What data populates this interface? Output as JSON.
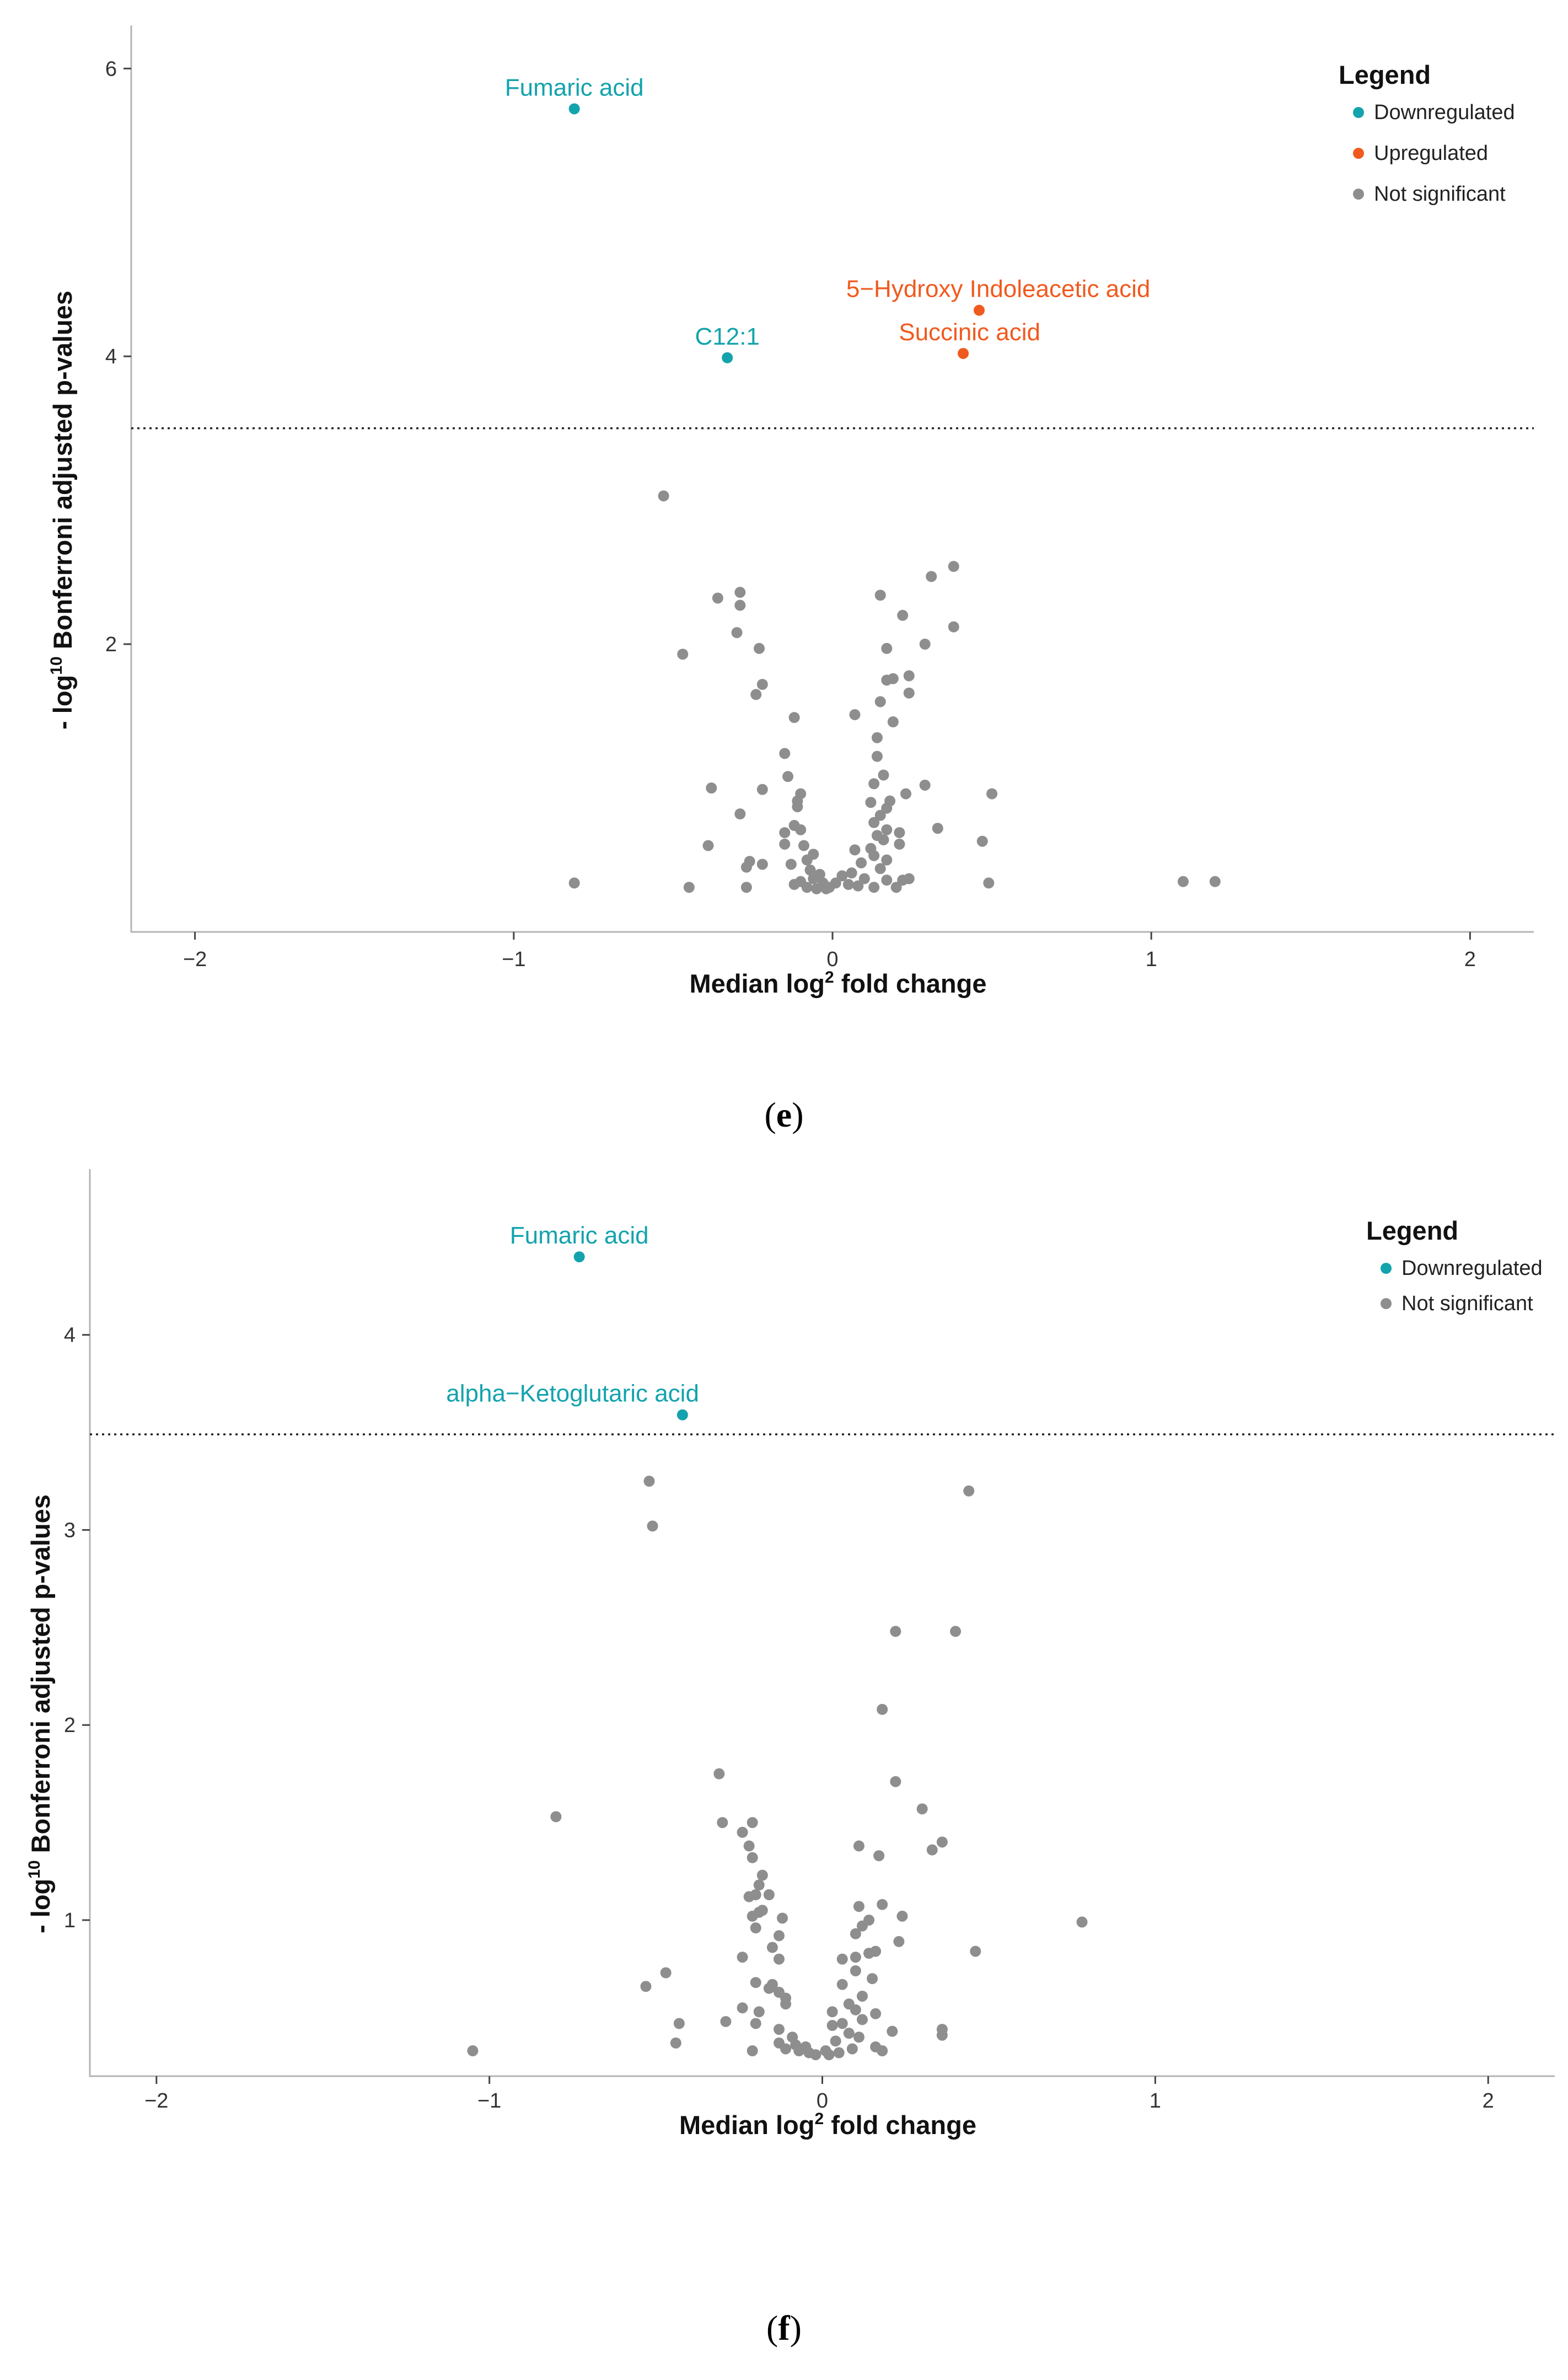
{
  "colors": {
    "downregulated": "#13a3ad",
    "upregulated": "#f05a1e",
    "not_significant": "#8e8e8e"
  },
  "chart_data": [
    {
      "id": "e",
      "type": "scatter",
      "caption": "e",
      "xlabel_main": "Median log",
      "xlabel_sup": "2",
      "xlabel_tail": " fold change",
      "ylabel_lead": "- log",
      "ylabel_sup": "10",
      "ylabel_main": " Bonferroni adjusted p-values",
      "xlim": [
        -2.2,
        2.2
      ],
      "ylim": [
        0,
        6.3
      ],
      "xticks": [
        -2,
        -1,
        0,
        1,
        2
      ],
      "xtick_labels": [
        "−2",
        "−1",
        "0",
        "1",
        "2"
      ],
      "yticks": [
        2,
        4,
        6
      ],
      "ytick_labels": [
        "2",
        "4",
        "6"
      ],
      "threshold": 3.5,
      "legend": {
        "title": "Legend",
        "entries": [
          {
            "label": "Downregulated",
            "group": "down"
          },
          {
            "label": "Upregulated",
            "group": "up"
          },
          {
            "label": "Not significant",
            "group": "ns"
          }
        ]
      },
      "labeled_points": [
        {
          "name": "Fumaric acid",
          "x": -0.81,
          "y": 5.72,
          "group": "down",
          "dx": 0
        },
        {
          "name": "C12:1",
          "x": -0.33,
          "y": 3.99,
          "group": "down",
          "dx": 0
        },
        {
          "name": "5−Hydroxy Indoleacetic acid",
          "x": 0.46,
          "y": 4.32,
          "group": "up",
          "dx": 0.06
        },
        {
          "name": "Succinic acid",
          "x": 0.41,
          "y": 4.02,
          "group": "up",
          "dx": 0.02
        }
      ],
      "points": [
        [
          -0.53,
          3.03
        ],
        [
          -0.29,
          2.36
        ],
        [
          -0.36,
          2.32
        ],
        [
          -0.29,
          2.27
        ],
        [
          -0.3,
          2.08
        ],
        [
          -0.23,
          1.97
        ],
        [
          -0.47,
          1.93
        ],
        [
          -0.22,
          1.72
        ],
        [
          -0.24,
          1.65
        ],
        [
          -0.12,
          1.49
        ],
        [
          -0.15,
          1.24
        ],
        [
          -0.14,
          1.08
        ],
        [
          -0.38,
          1.0
        ],
        [
          -0.22,
          0.99
        ],
        [
          -0.1,
          0.96
        ],
        [
          -0.11,
          0.91
        ],
        [
          -0.11,
          0.87
        ],
        [
          -0.29,
          0.82
        ],
        [
          -0.12,
          0.74
        ],
        [
          -0.15,
          0.69
        ],
        [
          -0.1,
          0.71
        ],
        [
          -0.15,
          0.61
        ],
        [
          -0.09,
          0.6
        ],
        [
          -0.06,
          0.54
        ],
        [
          -0.08,
          0.5
        ],
        [
          -0.39,
          0.6
        ],
        [
          -0.26,
          0.49
        ],
        [
          -0.27,
          0.45
        ],
        [
          -0.22,
          0.47
        ],
        [
          -0.13,
          0.47
        ],
        [
          -0.07,
          0.43
        ],
        [
          -0.04,
          0.4
        ],
        [
          -0.06,
          0.37
        ],
        [
          -0.1,
          0.35
        ],
        [
          -0.03,
          0.34
        ],
        [
          -0.12,
          0.33
        ],
        [
          -0.08,
          0.31
        ],
        [
          -0.05,
          0.3
        ],
        [
          -0.02,
          0.3
        ],
        [
          -0.01,
          0.31
        ],
        [
          -0.81,
          0.34
        ],
        [
          -0.45,
          0.31
        ],
        [
          -0.27,
          0.31
        ],
        [
          0.38,
          2.54
        ],
        [
          0.31,
          2.47
        ],
        [
          0.15,
          2.34
        ],
        [
          0.22,
          2.2
        ],
        [
          0.38,
          2.12
        ],
        [
          0.29,
          2.0
        ],
        [
          0.17,
          1.97
        ],
        [
          0.24,
          1.78
        ],
        [
          0.19,
          1.76
        ],
        [
          0.17,
          1.75
        ],
        [
          0.24,
          1.66
        ],
        [
          0.15,
          1.6
        ],
        [
          0.07,
          1.51
        ],
        [
          0.19,
          1.46
        ],
        [
          0.14,
          1.35
        ],
        [
          0.14,
          1.22
        ],
        [
          0.16,
          1.09
        ],
        [
          0.13,
          1.03
        ],
        [
          0.29,
          1.02
        ],
        [
          0.5,
          0.96
        ],
        [
          0.23,
          0.96
        ],
        [
          0.18,
          0.91
        ],
        [
          0.12,
          0.9
        ],
        [
          0.17,
          0.86
        ],
        [
          0.15,
          0.81
        ],
        [
          0.13,
          0.76
        ],
        [
          0.33,
          0.72
        ],
        [
          0.17,
          0.71
        ],
        [
          0.21,
          0.69
        ],
        [
          0.14,
          0.67
        ],
        [
          0.16,
          0.64
        ],
        [
          0.21,
          0.61
        ],
        [
          0.47,
          0.63
        ],
        [
          0.12,
          0.58
        ],
        [
          0.07,
          0.57
        ],
        [
          0.13,
          0.53
        ],
        [
          0.17,
          0.5
        ],
        [
          0.09,
          0.48
        ],
        [
          0.15,
          0.44
        ],
        [
          0.06,
          0.41
        ],
        [
          0.03,
          0.39
        ],
        [
          0.1,
          0.37
        ],
        [
          0.17,
          0.36
        ],
        [
          0.22,
          0.36
        ],
        [
          0.24,
          0.37
        ],
        [
          0.01,
          0.34
        ],
        [
          0.05,
          0.33
        ],
        [
          0.08,
          0.32
        ],
        [
          0.13,
          0.31
        ],
        [
          0.2,
          0.31
        ],
        [
          0.49,
          0.34
        ],
        [
          1.1,
          0.35
        ],
        [
          1.2,
          0.35
        ]
      ]
    },
    {
      "id": "f",
      "type": "scatter",
      "caption": "f",
      "xlabel_main": "Median log",
      "xlabel_sup": "2",
      "xlabel_tail": " fold change",
      "ylabel_lead": "- log",
      "ylabel_sup": "10",
      "ylabel_main": " Bonferroni adjusted p-values",
      "xlim": [
        -2.2,
        2.2
      ],
      "ylim": [
        0.2,
        4.85
      ],
      "xticks": [
        -2,
        -1,
        0,
        1,
        2
      ],
      "xtick_labels": [
        "−2",
        "−1",
        "0",
        "1",
        "2"
      ],
      "yticks": [
        1,
        2,
        3,
        4
      ],
      "ytick_labels": [
        "1",
        "2",
        "3",
        "4"
      ],
      "threshold": 3.49,
      "legend": {
        "title": "Legend",
        "entries": [
          {
            "label": "Downregulated",
            "group": "down"
          },
          {
            "label": "Not significant",
            "group": "ns"
          }
        ]
      },
      "labeled_points": [
        {
          "name": "Fumaric acid",
          "x": -0.73,
          "y": 4.4,
          "group": "down",
          "dx": 0
        },
        {
          "name": "alpha−Ketoglutaric acid",
          "x": -0.42,
          "y": 3.59,
          "group": "down",
          "dx": -0.33
        }
      ],
      "points": [
        [
          -0.52,
          3.25
        ],
        [
          -0.51,
          3.02
        ],
        [
          -0.31,
          1.75
        ],
        [
          -0.8,
          1.53
        ],
        [
          -0.3,
          1.5
        ],
        [
          -0.21,
          1.5
        ],
        [
          -0.24,
          1.45
        ],
        [
          -0.22,
          1.38
        ],
        [
          -0.21,
          1.32
        ],
        [
          -0.18,
          1.23
        ],
        [
          -0.19,
          1.18
        ],
        [
          -0.2,
          1.13
        ],
        [
          -0.22,
          1.12
        ],
        [
          -0.16,
          1.13
        ],
        [
          -0.18,
          1.05
        ],
        [
          -0.19,
          1.04
        ],
        [
          -0.21,
          1.02
        ],
        [
          -0.12,
          1.01
        ],
        [
          -0.2,
          0.96
        ],
        [
          -0.13,
          0.92
        ],
        [
          -0.15,
          0.86
        ],
        [
          -0.24,
          0.81
        ],
        [
          -0.13,
          0.8
        ],
        [
          -0.47,
          0.73
        ],
        [
          -0.2,
          0.68
        ],
        [
          -0.15,
          0.67
        ],
        [
          -0.16,
          0.65
        ],
        [
          -0.53,
          0.66
        ],
        [
          -0.13,
          0.63
        ],
        [
          -0.11,
          0.6
        ],
        [
          -0.11,
          0.57
        ],
        [
          -0.24,
          0.55
        ],
        [
          -0.19,
          0.53
        ],
        [
          -0.43,
          0.47
        ],
        [
          -0.29,
          0.48
        ],
        [
          -0.2,
          0.47
        ],
        [
          -0.13,
          0.44
        ],
        [
          -0.09,
          0.4
        ],
        [
          -0.13,
          0.37
        ],
        [
          -0.08,
          0.36
        ],
        [
          -0.05,
          0.35
        ],
        [
          -0.11,
          0.34
        ],
        [
          -0.44,
          0.37
        ],
        [
          -0.21,
          0.33
        ],
        [
          -1.05,
          0.33
        ],
        [
          -0.04,
          0.32
        ],
        [
          -0.02,
          0.31
        ],
        [
          -0.07,
          0.33
        ],
        [
          0.44,
          3.2
        ],
        [
          0.22,
          2.48
        ],
        [
          0.4,
          2.48
        ],
        [
          0.18,
          2.08
        ],
        [
          0.22,
          1.71
        ],
        [
          0.3,
          1.57
        ],
        [
          0.36,
          1.4
        ],
        [
          0.33,
          1.36
        ],
        [
          0.11,
          1.38
        ],
        [
          0.17,
          1.33
        ],
        [
          0.78,
          0.99
        ],
        [
          0.46,
          0.84
        ],
        [
          0.24,
          1.02
        ],
        [
          0.18,
          1.08
        ],
        [
          0.11,
          1.07
        ],
        [
          0.14,
          1.0
        ],
        [
          0.12,
          0.97
        ],
        [
          0.1,
          0.93
        ],
        [
          0.23,
          0.89
        ],
        [
          0.16,
          0.84
        ],
        [
          0.14,
          0.83
        ],
        [
          0.1,
          0.81
        ],
        [
          0.06,
          0.8
        ],
        [
          0.1,
          0.74
        ],
        [
          0.15,
          0.7
        ],
        [
          0.06,
          0.67
        ],
        [
          0.12,
          0.61
        ],
        [
          0.08,
          0.57
        ],
        [
          0.1,
          0.54
        ],
        [
          0.03,
          0.53
        ],
        [
          0.16,
          0.52
        ],
        [
          0.12,
          0.49
        ],
        [
          0.06,
          0.47
        ],
        [
          0.03,
          0.46
        ],
        [
          0.08,
          0.42
        ],
        [
          0.21,
          0.43
        ],
        [
          0.11,
          0.4
        ],
        [
          0.04,
          0.38
        ],
        [
          0.36,
          0.44
        ],
        [
          0.36,
          0.41
        ],
        [
          0.16,
          0.35
        ],
        [
          0.09,
          0.34
        ],
        [
          0.01,
          0.33
        ],
        [
          0.02,
          0.31
        ],
        [
          0.05,
          0.32
        ],
        [
          0.18,
          0.33
        ]
      ]
    }
  ]
}
